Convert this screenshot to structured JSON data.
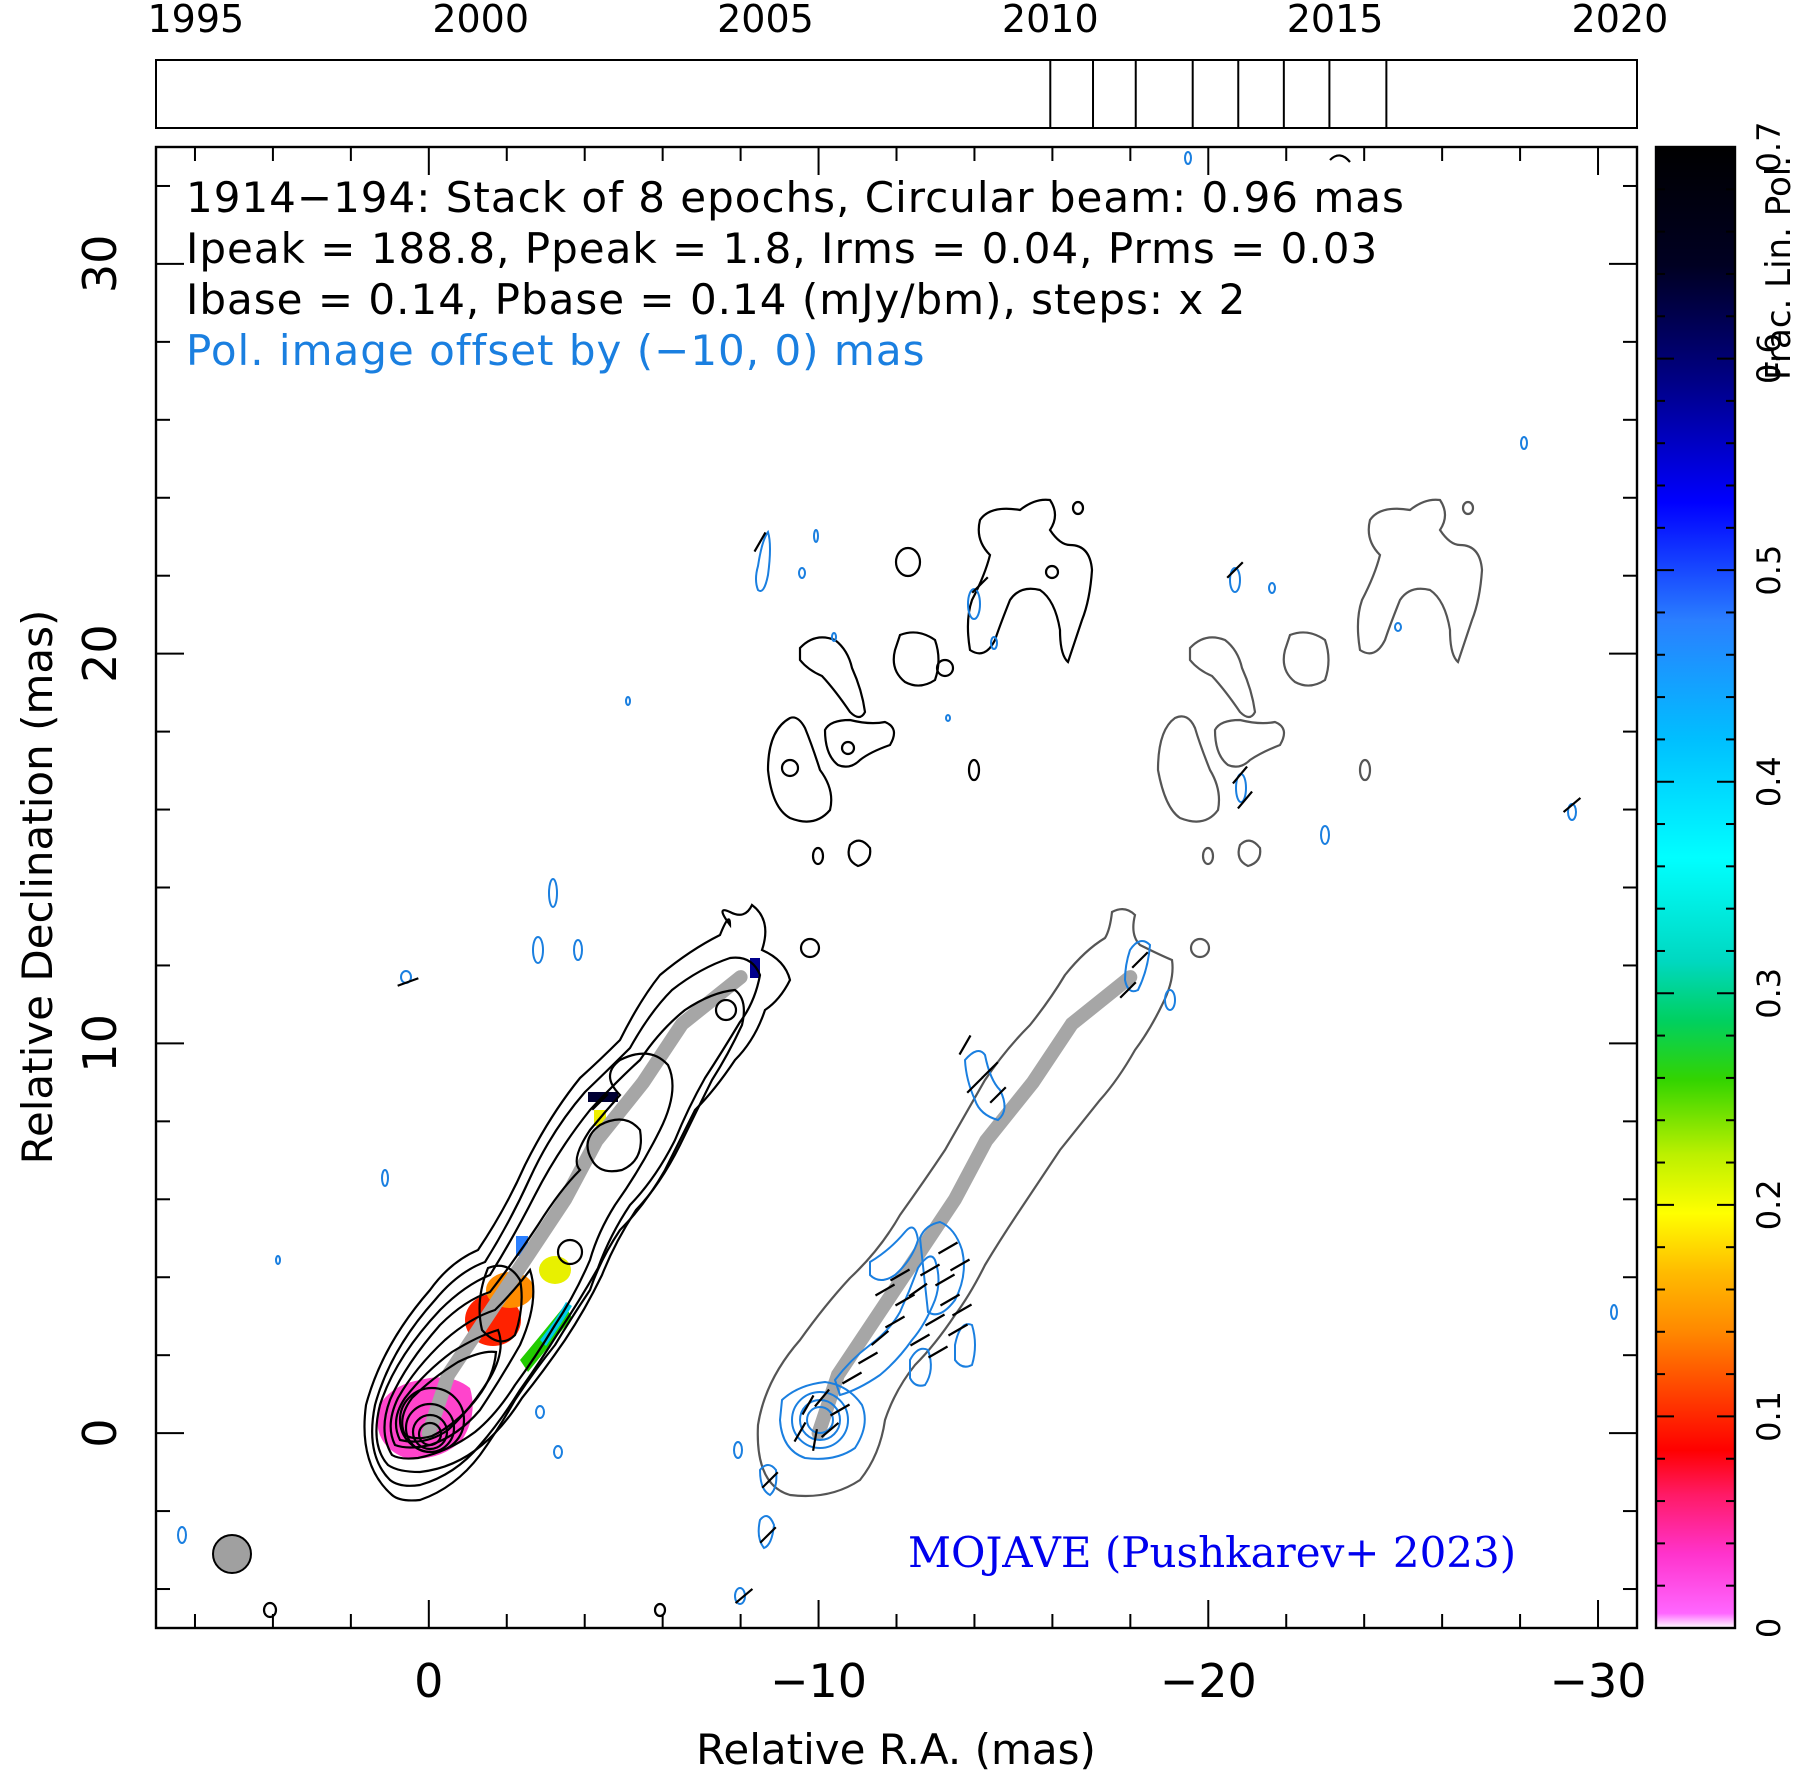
{
  "chart_data": {
    "type": "contour",
    "xlabel": "Relative R.A. (mas)",
    "ylabel": "Relative Declination (mas)",
    "xlim": [
      7,
      -31
    ],
    "ylim": [
      -5,
      33
    ],
    "xticks": [
      "0",
      "−10",
      "−20",
      "−30"
    ],
    "xtick_values": [
      0,
      -10,
      -20,
      -30
    ],
    "yticks": [
      "0",
      "10",
      "20",
      "30"
    ],
    "ytick_values": [
      0,
      10,
      20,
      30
    ],
    "timeline": {
      "labels": [
        "1995",
        "2000",
        "2005",
        "2010",
        "2015",
        "2020"
      ],
      "label_years": [
        1995,
        2000,
        2005,
        2010,
        2015,
        2020
      ],
      "range": [
        1994.3,
        2020.3
      ],
      "epochs": [
        2010.0,
        2010.75,
        2011.5,
        2012.5,
        2013.3,
        2014.1,
        2014.9,
        2015.9
      ]
    },
    "annotations": {
      "line1": "1914−194: Stack of 8 epochs, Circular beam: 0.96 mas",
      "line2": "Ipeak = 188.8, Ppeak = 1.8, Irms = 0.04, Prms = 0.03",
      "line3": "Ibase = 0.14, Pbase = 0.14 (mJy/bm), steps: x 2",
      "line4": "Pol. image offset by (−10, 0) mas",
      "credit": "MOJAVE (Pushkarev+ 2023)"
    },
    "colorbar": {
      "label": "Frac. Lin. Pol.",
      "range": [
        0,
        0.7
      ],
      "ticks": [
        "0",
        "0.1",
        "0.2",
        "0.3",
        "0.4",
        "0.5",
        "0.6",
        "0.7"
      ],
      "tick_values": [
        0,
        0.1,
        0.2,
        0.3,
        0.4,
        0.5,
        0.6,
        0.7
      ]
    },
    "beam_diameter_mas": 0.96,
    "pol_offset_mas": [
      -10,
      0
    ],
    "ridge_line": [
      [
        0,
        0
      ],
      [
        -0.5,
        1.5
      ],
      [
        -1.5,
        3
      ],
      [
        -2.5,
        4.5
      ],
      [
        -3.5,
        6
      ],
      [
        -4.3,
        7.5
      ],
      [
        -5.5,
        9
      ],
      [
        -6.5,
        10.5
      ],
      [
        -8,
        11.7
      ]
    ],
    "colors": {
      "stokes_i_contours": "#000000",
      "offset_i_contours": "#555555",
      "pol_contours": "#1a7fe0",
      "ridge": "#a6a6a6",
      "credit": "#0000ee",
      "offset_label": "#1a7fe0",
      "beam_fill": "#a0a0a0"
    }
  }
}
